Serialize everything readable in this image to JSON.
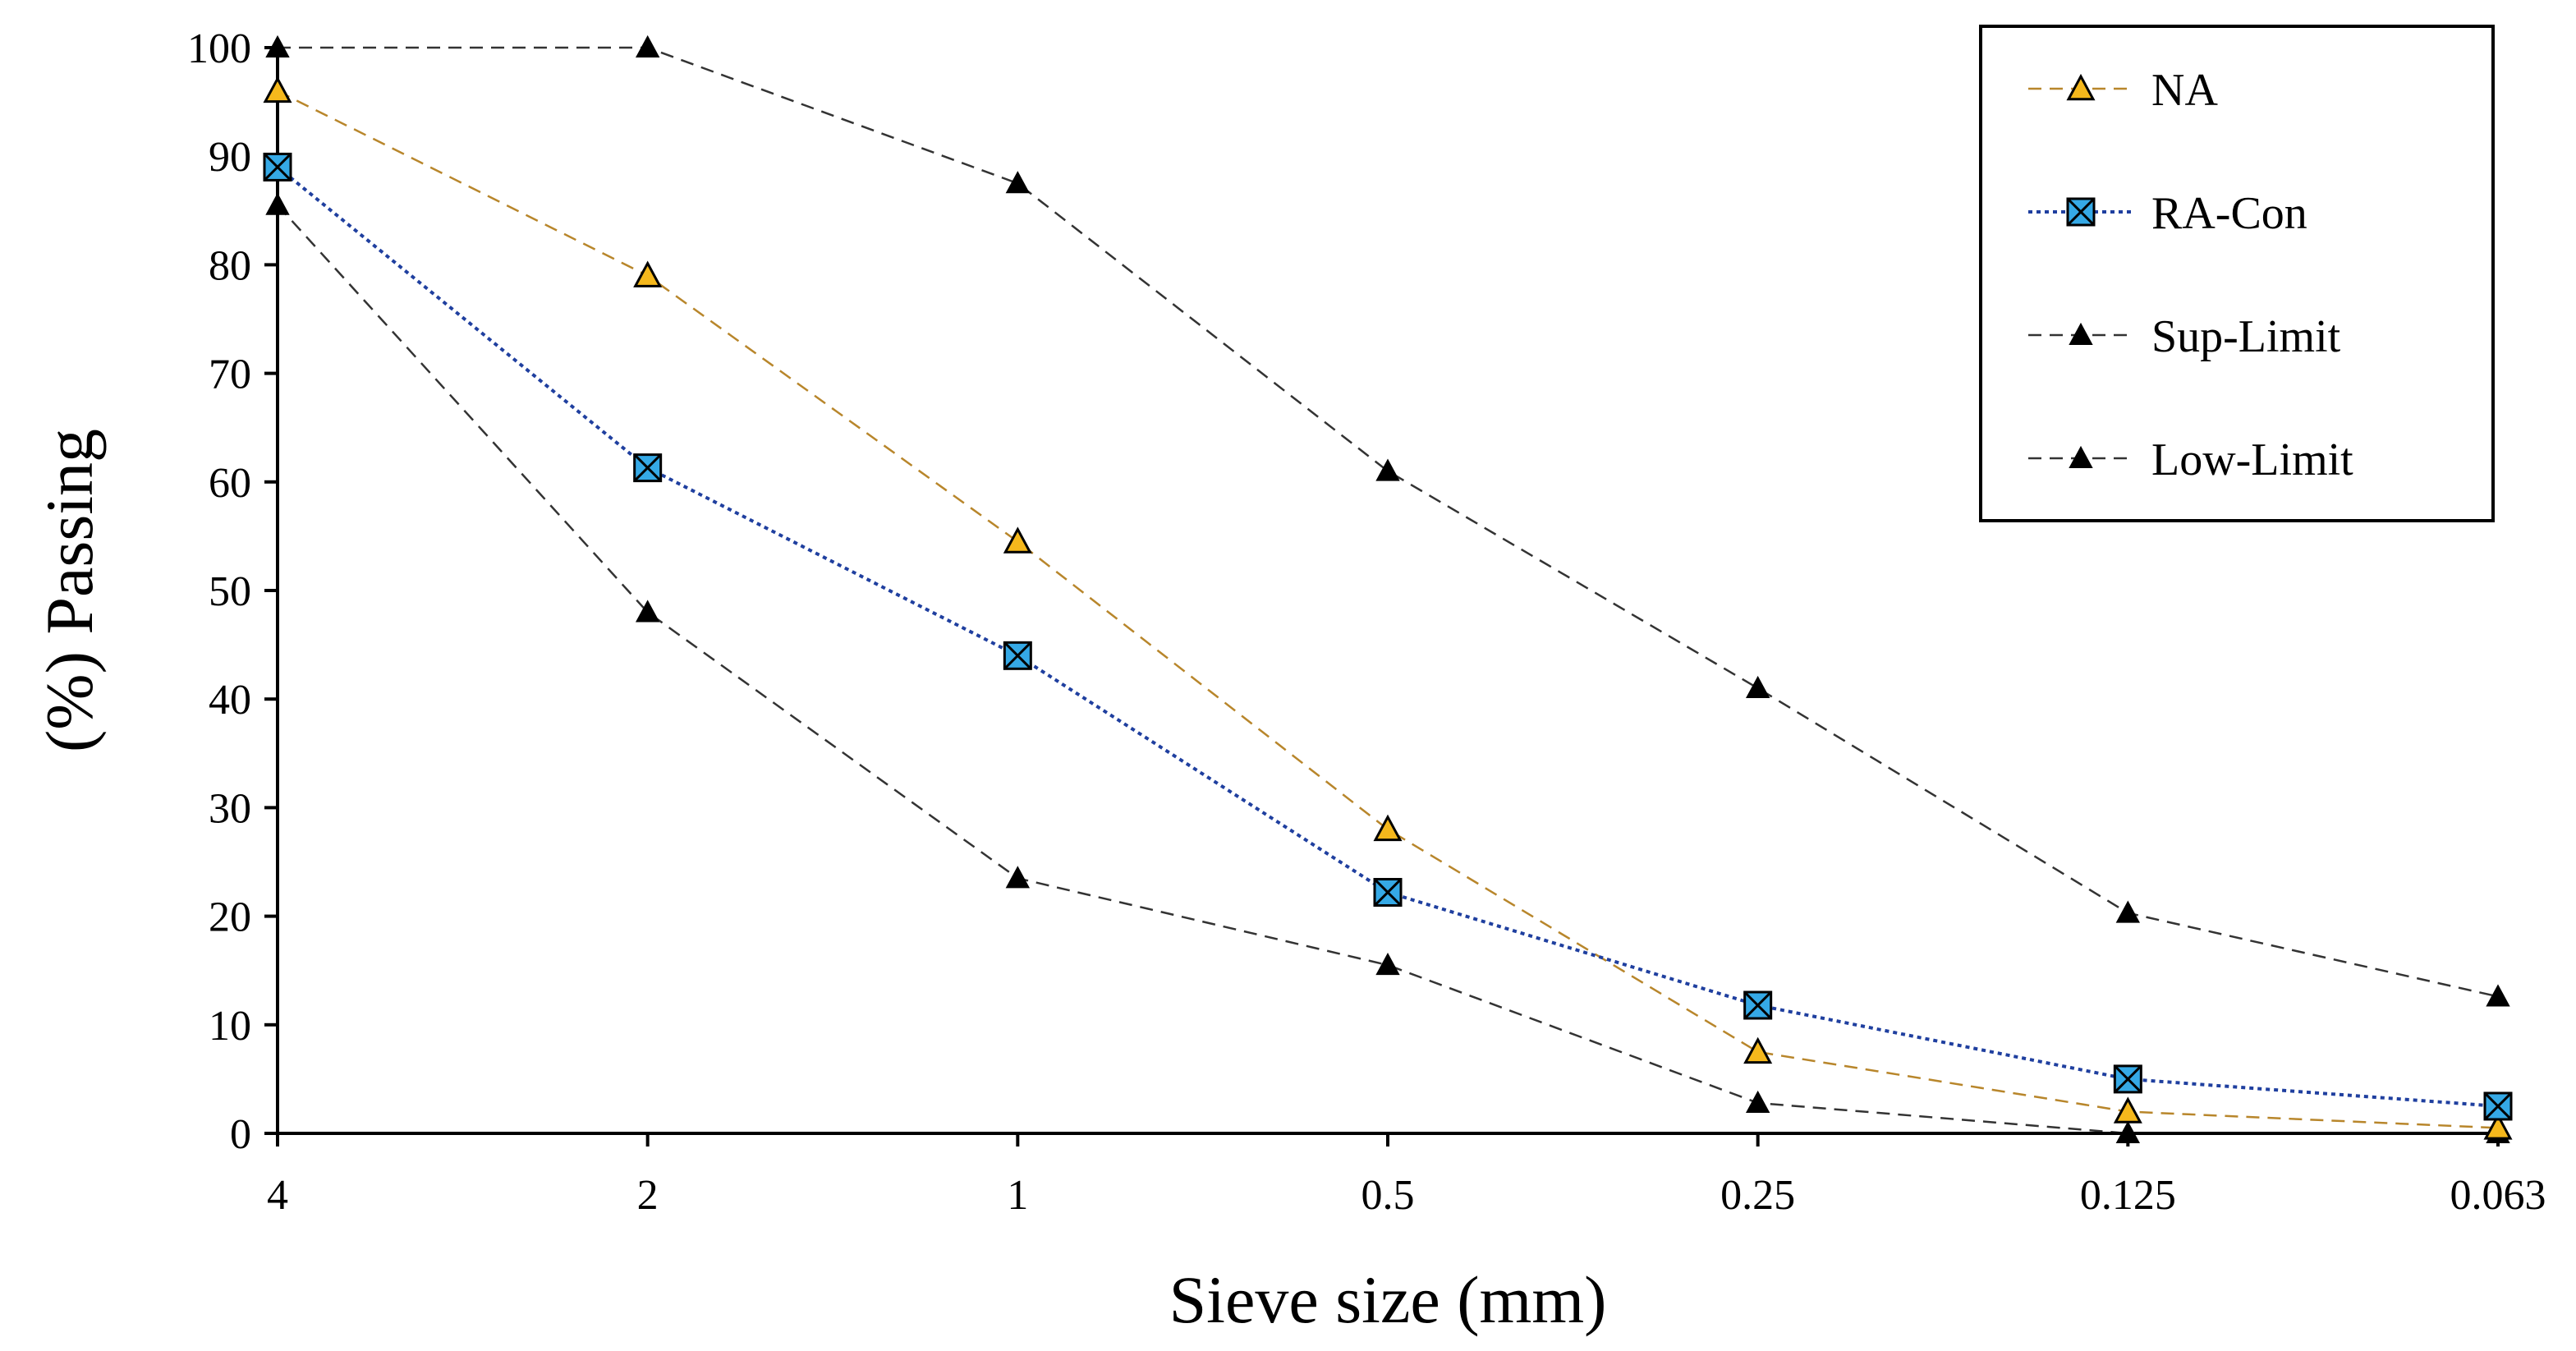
{
  "chart_data": {
    "type": "line",
    "title": "",
    "xlabel": "Sieve size (mm)",
    "ylabel": "(%) Passing",
    "categories": [
      "4",
      "2",
      "1",
      "0.5",
      "0.25",
      "0.125",
      "0.063"
    ],
    "ylim": [
      0,
      100
    ],
    "yticks": [
      "0",
      "10",
      "20",
      "30",
      "40",
      "50",
      "60",
      "70",
      "80",
      "90",
      "100"
    ],
    "grid": false,
    "legend_position": "top-right",
    "series": [
      {
        "name": "NA",
        "values": [
          96,
          79,
          54.5,
          28,
          7.5,
          2,
          0.5
        ],
        "color": "#b8862b",
        "line_style": "dashed",
        "marker": "triangle-open",
        "marker_fill": "#f5b81c"
      },
      {
        "name": "RA-Con",
        "values": [
          89,
          61.3,
          44,
          22.2,
          11.8,
          5,
          2.5
        ],
        "color": "#1f3f9f",
        "line_style": "dotted",
        "marker": "square-x",
        "marker_fill": "#35a9e6"
      },
      {
        "name": "Sup-Limit",
        "values": [
          100,
          100,
          87.5,
          61,
          41,
          20.3,
          12.6
        ],
        "color": "#333333",
        "line_style": "dashed",
        "marker": "triangle-filled",
        "marker_fill": "#000000"
      },
      {
        "name": "Low-Limit",
        "values": [
          85.5,
          48,
          23.5,
          15.5,
          2.8,
          0,
          0
        ],
        "color": "#333333",
        "line_style": "dashed",
        "marker": "triangle-filled",
        "marker_fill": "#000000"
      }
    ]
  }
}
